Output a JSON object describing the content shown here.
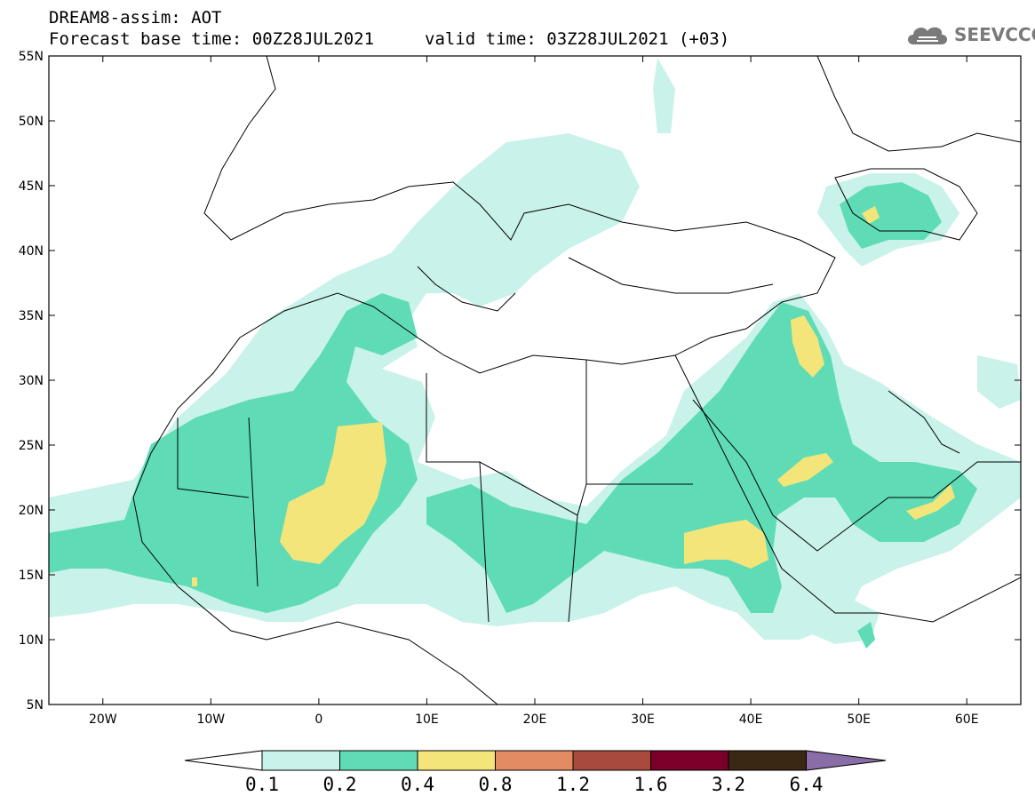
{
  "header": {
    "line1": "DREAM8-assim: AOT",
    "line2": "Forecast base time: 00Z28JUL2021",
    "line2b": "valid time: 03Z28JUL2021 (+03)",
    "logo_text": "SEEVCCC",
    "logo_icon": "cloud-icon"
  },
  "map": {
    "lon_range": [
      -25,
      65
    ],
    "lat_range": [
      5,
      55
    ],
    "lon_ticks": [
      "20W",
      "10W",
      "0",
      "10E",
      "20E",
      "30E",
      "40E",
      "50E",
      "60E"
    ],
    "lat_ticks": [
      "55N",
      "50N",
      "45N",
      "40N",
      "35N",
      "30N",
      "25N",
      "20N",
      "15N",
      "10N",
      "5N"
    ]
  },
  "colorbar": {
    "thresholds": [
      "0.1",
      "0.2",
      "0.4",
      "0.8",
      "1.2",
      "1.6",
      "3.2",
      "6.4"
    ],
    "colors": [
      "#ffffff",
      "#c8f2ea",
      "#5fdcb6",
      "#f3e57a",
      "#e38b63",
      "#a84b3e",
      "#7a0029",
      "#3a2714",
      "#8a6ca6"
    ]
  }
}
